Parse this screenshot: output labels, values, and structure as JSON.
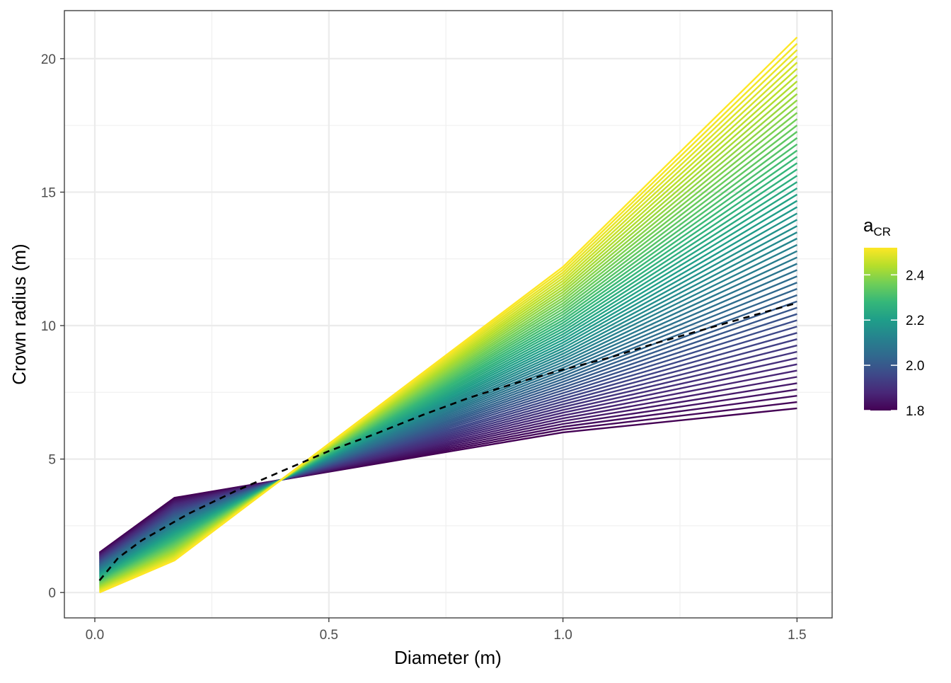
{
  "chart_data": {
    "type": "line",
    "title": "",
    "xlabel": "Diameter (m)",
    "ylabel": "Crown radius (m)",
    "xlim": [
      -0.065,
      1.575
    ],
    "ylim": [
      -0.95,
      21.8
    ],
    "x_ticks": [
      0.0,
      0.5,
      1.0,
      1.5
    ],
    "x_tick_labels": [
      "0.0",
      "0.5",
      "1.0",
      "1.5"
    ],
    "y_ticks": [
      0,
      5,
      10,
      15,
      20
    ],
    "y_tick_labels": [
      "0",
      "5",
      "10",
      "15",
      "20"
    ],
    "grid": true,
    "theme": "bw",
    "family": {
      "description_param": "a_CR",
      "a_min": 1.8,
      "a_max": 2.52,
      "n_curves": 60,
      "x": [
        0.01,
        0.17,
        1.0,
        1.5
      ],
      "y_at_a_min": [
        1.5,
        3.55,
        6.0,
        6.9
      ],
      "y_at_a_max": [
        0.0,
        1.2,
        12.2,
        20.8
      ]
    },
    "reference_series": {
      "style": "dashed",
      "color": "#000000",
      "x": [
        0.01,
        0.05,
        0.1,
        0.2,
        0.3,
        0.4,
        0.5,
        0.6,
        0.7,
        0.8,
        0.9,
        1.0,
        1.1,
        1.2,
        1.3,
        1.4,
        1.5
      ],
      "y": [
        0.45,
        1.3,
        1.95,
        2.95,
        3.8,
        4.55,
        5.3,
        5.95,
        6.65,
        7.3,
        7.85,
        8.35,
        8.8,
        9.35,
        9.85,
        10.35,
        10.85
      ]
    },
    "legend": {
      "title_main": "a",
      "title_sub": "CR",
      "placement": "right",
      "type": "colorbar",
      "range": [
        1.8,
        2.52
      ],
      "ticks": [
        1.8,
        2.0,
        2.2,
        2.4
      ],
      "tick_labels": [
        "1.8",
        "2.0",
        "2.2",
        "2.4"
      ],
      "colormap": "viridis",
      "colors": [
        "#440154",
        "#482878",
        "#3e4989",
        "#31688e",
        "#26828e",
        "#1f9e89",
        "#35b779",
        "#6ece58",
        "#b5de2b",
        "#fde725"
      ]
    }
  }
}
